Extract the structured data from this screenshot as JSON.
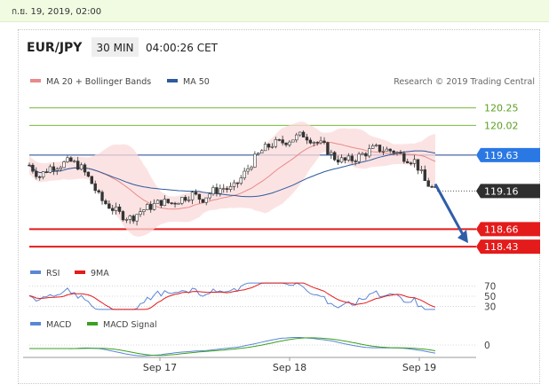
{
  "timestamp": "ก.ย. 19, 2019, 02:00",
  "header": {
    "symbol": "EUR/JPY",
    "interval": "30 MIN",
    "time": "04:00:26 CET"
  },
  "legend": {
    "ma20": "MA 20 + Bollinger Bands",
    "ma50": "MA 50"
  },
  "credit": "Research © 2019 Trading Central",
  "colors": {
    "ma20": "#e88a8a",
    "ma50": "#2d5a9c",
    "support": "#e41b1b",
    "resistance": "#7ab83a",
    "last": "#2f2f2f",
    "pivot": "#2a78e4",
    "rsi": "#5a86d6",
    "rsi9": "#e41b1b",
    "macd": "#5a86d6",
    "signal": "#3aa020",
    "arrow": "#2f5ea8"
  },
  "chart_data": [
    {
      "type": "candlestick",
      "title": "EUR/JPY",
      "x_ticks": [
        "Sep 17",
        "Sep 18",
        "Sep 19"
      ],
      "ylim": [
        118.35,
        120.35
      ],
      "levels": [
        {
          "value": 120.25,
          "label": "120.25",
          "kind": "resistance"
        },
        {
          "value": 120.02,
          "label": "120.02",
          "kind": "resistance"
        },
        {
          "value": 119.63,
          "label": "119.63",
          "kind": "pivot"
        },
        {
          "value": 119.16,
          "label": "119.16",
          "kind": "last"
        },
        {
          "value": 118.66,
          "label": "118.66",
          "kind": "support"
        },
        {
          "value": 118.43,
          "label": "118.43",
          "kind": "support"
        }
      ],
      "price_path": [
        119.5,
        119.35,
        119.47,
        119.5,
        119.55,
        119.48,
        119.3,
        119.05,
        118.95,
        118.85,
        118.8,
        118.9,
        118.96,
        119.02,
        119.0,
        119.06,
        119.12,
        119.05,
        119.15,
        119.2,
        119.18,
        119.35,
        119.55,
        119.7,
        119.78,
        119.8,
        119.85,
        119.9,
        119.82,
        119.75,
        119.6,
        119.55,
        119.58,
        119.65,
        119.72,
        119.7,
        119.68,
        119.6,
        119.55,
        119.28,
        119.16
      ],
      "projection": {
        "from": 119.25,
        "to": 118.43
      }
    },
    {
      "type": "line",
      "title": "RSI",
      "series": [
        {
          "name": "RSI"
        },
        {
          "name": "9MA"
        }
      ],
      "levels": [
        {
          "value": 70,
          "label": "70"
        },
        {
          "value": 50,
          "label": "50"
        },
        {
          "value": 30,
          "label": "30"
        }
      ],
      "ylim": [
        22,
        78
      ]
    },
    {
      "type": "line",
      "title": "MACD",
      "series": [
        {
          "name": "MACD"
        },
        {
          "name": "MACD Signal"
        }
      ],
      "levels": [
        {
          "value": 0,
          "label": "0"
        }
      ]
    }
  ]
}
